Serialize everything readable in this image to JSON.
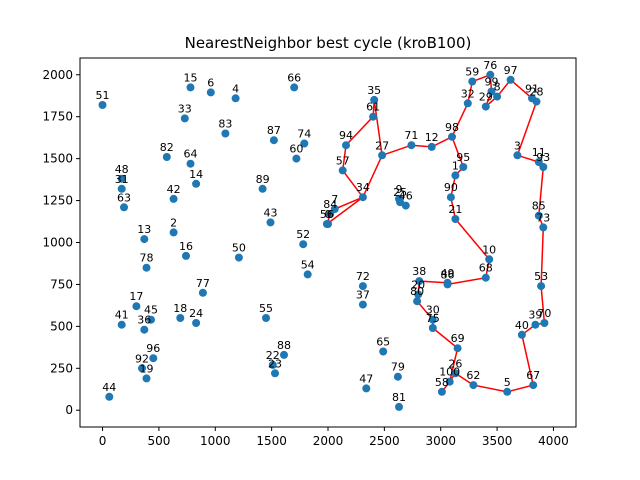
{
  "chart_data": {
    "type": "scatter",
    "title": "NearestNeighbor best cycle (kroB100)",
    "xlabel": "",
    "ylabel": "",
    "xlim": [
      -200,
      4200
    ],
    "ylim": [
      -100,
      2100
    ],
    "xticks": [
      0,
      500,
      1000,
      1500,
      2000,
      2500,
      3000,
      3500,
      4000
    ],
    "yticks": [
      0,
      250,
      500,
      750,
      1000,
      1250,
      1500,
      1750,
      2000
    ],
    "grid": false,
    "point_color": "#1f77b4",
    "cycle_color": "#ff0000",
    "points": [
      {
        "id": "0",
        "x": 2000,
        "y": 1110
      },
      {
        "id": "1",
        "x": 3130,
        "y": 1400
      },
      {
        "id": "2",
        "x": 630,
        "y": 1060
      },
      {
        "id": "3",
        "x": 3680,
        "y": 1520
      },
      {
        "id": "4",
        "x": 1180,
        "y": 1860
      },
      {
        "id": "5",
        "x": 3590,
        "y": 110
      },
      {
        "id": "6",
        "x": 960,
        "y": 1895
      },
      {
        "id": "7",
        "x": 2060,
        "y": 1200
      },
      {
        "id": "8",
        "x": 3500,
        "y": 1870
      },
      {
        "id": "9",
        "x": 2630,
        "y": 1260
      },
      {
        "id": "10",
        "x": 3430,
        "y": 900
      },
      {
        "id": "11",
        "x": 3870,
        "y": 1480
      },
      {
        "id": "12",
        "x": 2920,
        "y": 1570
      },
      {
        "id": "13",
        "x": 370,
        "y": 1020
      },
      {
        "id": "14",
        "x": 830,
        "y": 1350
      },
      {
        "id": "15",
        "x": 780,
        "y": 1925
      },
      {
        "id": "16",
        "x": 740,
        "y": 920
      },
      {
        "id": "17",
        "x": 300,
        "y": 620
      },
      {
        "id": "18",
        "x": 690,
        "y": 550
      },
      {
        "id": "19",
        "x": 390,
        "y": 190
      },
      {
        "id": "20",
        "x": 2800,
        "y": 690
      },
      {
        "id": "21",
        "x": 3130,
        "y": 1140
      },
      {
        "id": "22",
        "x": 1510,
        "y": 270
      },
      {
        "id": "23",
        "x": 1530,
        "y": 220
      },
      {
        "id": "24",
        "x": 830,
        "y": 520
      },
      {
        "id": "25",
        "x": 2640,
        "y": 1240
      },
      {
        "id": "26",
        "x": 3130,
        "y": 220
      },
      {
        "id": "27",
        "x": 2480,
        "y": 1520
      },
      {
        "id": "28",
        "x": 3850,
        "y": 1840
      },
      {
        "id": "29",
        "x": 3400,
        "y": 1810
      },
      {
        "id": "30",
        "x": 2930,
        "y": 540
      },
      {
        "id": "31",
        "x": 170,
        "y": 1320
      },
      {
        "id": "32",
        "x": 3240,
        "y": 1830
      },
      {
        "id": "33",
        "x": 730,
        "y": 1740
      },
      {
        "id": "34",
        "x": 2310,
        "y": 1270
      },
      {
        "id": "35",
        "x": 2410,
        "y": 1850
      },
      {
        "id": "36",
        "x": 370,
        "y": 480
      },
      {
        "id": "37",
        "x": 2310,
        "y": 630
      },
      {
        "id": "38",
        "x": 2810,
        "y": 770
      },
      {
        "id": "39",
        "x": 3840,
        "y": 510
      },
      {
        "id": "40",
        "x": 3720,
        "y": 450
      },
      {
        "id": "41",
        "x": 170,
        "y": 510
      },
      {
        "id": "42",
        "x": 630,
        "y": 1260
      },
      {
        "id": "43",
        "x": 1490,
        "y": 1120
      },
      {
        "id": "44",
        "x": 60,
        "y": 80
      },
      {
        "id": "45",
        "x": 430,
        "y": 540
      },
      {
        "id": "46",
        "x": 2690,
        "y": 1220
      },
      {
        "id": "47",
        "x": 2340,
        "y": 130
      },
      {
        "id": "48",
        "x": 170,
        "y": 1380
      },
      {
        "id": "49",
        "x": 3060,
        "y": 760
      },
      {
        "id": "50",
        "x": 1210,
        "y": 910
      },
      {
        "id": "51",
        "x": 0,
        "y": 1820
      },
      {
        "id": "52",
        "x": 1780,
        "y": 990
      },
      {
        "id": "53",
        "x": 3890,
        "y": 740
      },
      {
        "id": "54",
        "x": 1820,
        "y": 810
      },
      {
        "id": "55",
        "x": 1450,
        "y": 550
      },
      {
        "id": "56",
        "x": 1990,
        "y": 1110
      },
      {
        "id": "57",
        "x": 2130,
        "y": 1430
      },
      {
        "id": "58",
        "x": 3010,
        "y": 110
      },
      {
        "id": "59",
        "x": 3280,
        "y": 1960
      },
      {
        "id": "60",
        "x": 1720,
        "y": 1500
      },
      {
        "id": "61",
        "x": 2400,
        "y": 1750
      },
      {
        "id": "62",
        "x": 3290,
        "y": 150
      },
      {
        "id": "63",
        "x": 190,
        "y": 1210
      },
      {
        "id": "64",
        "x": 780,
        "y": 1470
      },
      {
        "id": "65",
        "x": 2490,
        "y": 350
      },
      {
        "id": "66",
        "x": 1700,
        "y": 1925
      },
      {
        "id": "67",
        "x": 3820,
        "y": 150
      },
      {
        "id": "68",
        "x": 3400,
        "y": 790
      },
      {
        "id": "69",
        "x": 3150,
        "y": 370
      },
      {
        "id": "70",
        "x": 3920,
        "y": 520
      },
      {
        "id": "71",
        "x": 2740,
        "y": 1580
      },
      {
        "id": "72",
        "x": 2310,
        "y": 740
      },
      {
        "id": "73",
        "x": 3910,
        "y": 1090
      },
      {
        "id": "74",
        "x": 1790,
        "y": 1590
      },
      {
        "id": "75",
        "x": 2930,
        "y": 490
      },
      {
        "id": "76",
        "x": 3440,
        "y": 2000
      },
      {
        "id": "77",
        "x": 890,
        "y": 700
      },
      {
        "id": "78",
        "x": 390,
        "y": 850
      },
      {
        "id": "79",
        "x": 2620,
        "y": 200
      },
      {
        "id": "80",
        "x": 2790,
        "y": 650
      },
      {
        "id": "81",
        "x": 2630,
        "y": 20
      },
      {
        "id": "82",
        "x": 570,
        "y": 1510
      },
      {
        "id": "83",
        "x": 1090,
        "y": 1650
      },
      {
        "id": "84",
        "x": 2020,
        "y": 1170
      },
      {
        "id": "85",
        "x": 3870,
        "y": 1160
      },
      {
        "id": "86",
        "x": 3060,
        "y": 750
      },
      {
        "id": "87",
        "x": 1520,
        "y": 1610
      },
      {
        "id": "88",
        "x": 1610,
        "y": 330
      },
      {
        "id": "89",
        "x": 1420,
        "y": 1320
      },
      {
        "id": "90",
        "x": 3090,
        "y": 1270
      },
      {
        "id": "91",
        "x": 3810,
        "y": 1860
      },
      {
        "id": "92",
        "x": 350,
        "y": 250
      },
      {
        "id": "93",
        "x": 3910,
        "y": 1450
      },
      {
        "id": "94",
        "x": 2160,
        "y": 1580
      },
      {
        "id": "95",
        "x": 3200,
        "y": 1450
      },
      {
        "id": "96",
        "x": 450,
        "y": 310
      },
      {
        "id": "97",
        "x": 3620,
        "y": 1970
      },
      {
        "id": "98",
        "x": 3100,
        "y": 1630
      },
      {
        "id": "99",
        "x": 3450,
        "y": 1900
      },
      {
        "id": "100",
        "x": 3080,
        "y": 170
      }
    ],
    "cycle_path": [
      {
        "x": 1990,
        "y": 1110
      },
      {
        "x": 2310,
        "y": 1270
      },
      {
        "x": 2130,
        "y": 1430
      },
      {
        "x": 2160,
        "y": 1580
      },
      {
        "x": 2400,
        "y": 1750
      },
      {
        "x": 2410,
        "y": 1850
      },
      {
        "x": 2480,
        "y": 1520
      },
      {
        "x": 2740,
        "y": 1580
      },
      {
        "x": 2920,
        "y": 1570
      },
      {
        "x": 3100,
        "y": 1630
      },
      {
        "x": 3240,
        "y": 1830
      },
      {
        "x": 3280,
        "y": 1960
      },
      {
        "x": 3440,
        "y": 2000
      },
      {
        "x": 3450,
        "y": 1900
      },
      {
        "x": 3400,
        "y": 1810
      },
      {
        "x": 3500,
        "y": 1870
      },
      {
        "x": 3620,
        "y": 1970
      },
      {
        "x": 3810,
        "y": 1860
      },
      {
        "x": 3850,
        "y": 1840
      },
      {
        "x": 3680,
        "y": 1520
      },
      {
        "x": 3870,
        "y": 1480
      },
      {
        "x": 3910,
        "y": 1450
      },
      {
        "x": 3870,
        "y": 1160
      },
      {
        "x": 3910,
        "y": 1090
      },
      {
        "x": 3890,
        "y": 740
      },
      {
        "x": 3920,
        "y": 520
      },
      {
        "x": 3840,
        "y": 510
      },
      {
        "x": 3720,
        "y": 450
      },
      {
        "x": 3820,
        "y": 150
      },
      {
        "x": 3590,
        "y": 110
      },
      {
        "x": 3290,
        "y": 150
      },
      {
        "x": 3130,
        "y": 220
      },
      {
        "x": 3080,
        "y": 170
      },
      {
        "x": 3010,
        "y": 110
      },
      {
        "x": 3080,
        "y": 170
      },
      {
        "x": 3150,
        "y": 370
      },
      {
        "x": 2930,
        "y": 490
      },
      {
        "x": 2930,
        "y": 540
      },
      {
        "x": 2790,
        "y": 650
      },
      {
        "x": 2800,
        "y": 690
      },
      {
        "x": 2810,
        "y": 770
      },
      {
        "x": 3060,
        "y": 760
      },
      {
        "x": 3060,
        "y": 750
      },
      {
        "x": 3400,
        "y": 790
      },
      {
        "x": 3430,
        "y": 900
      },
      {
        "x": 3130,
        "y": 1140
      },
      {
        "x": 3090,
        "y": 1270
      },
      {
        "x": 3130,
        "y": 1400
      },
      {
        "x": 3200,
        "y": 1450
      },
      {
        "x": 3100,
        "y": 1630
      },
      {
        "x": 2920,
        "y": 1570
      },
      {
        "x": 2740,
        "y": 1580
      },
      {
        "x": 2480,
        "y": 1520
      },
      {
        "x": 2310,
        "y": 1270
      },
      {
        "x": 2060,
        "y": 1200
      },
      {
        "x": 2020,
        "y": 1170
      },
      {
        "x": 1990,
        "y": 1110
      }
    ]
  }
}
